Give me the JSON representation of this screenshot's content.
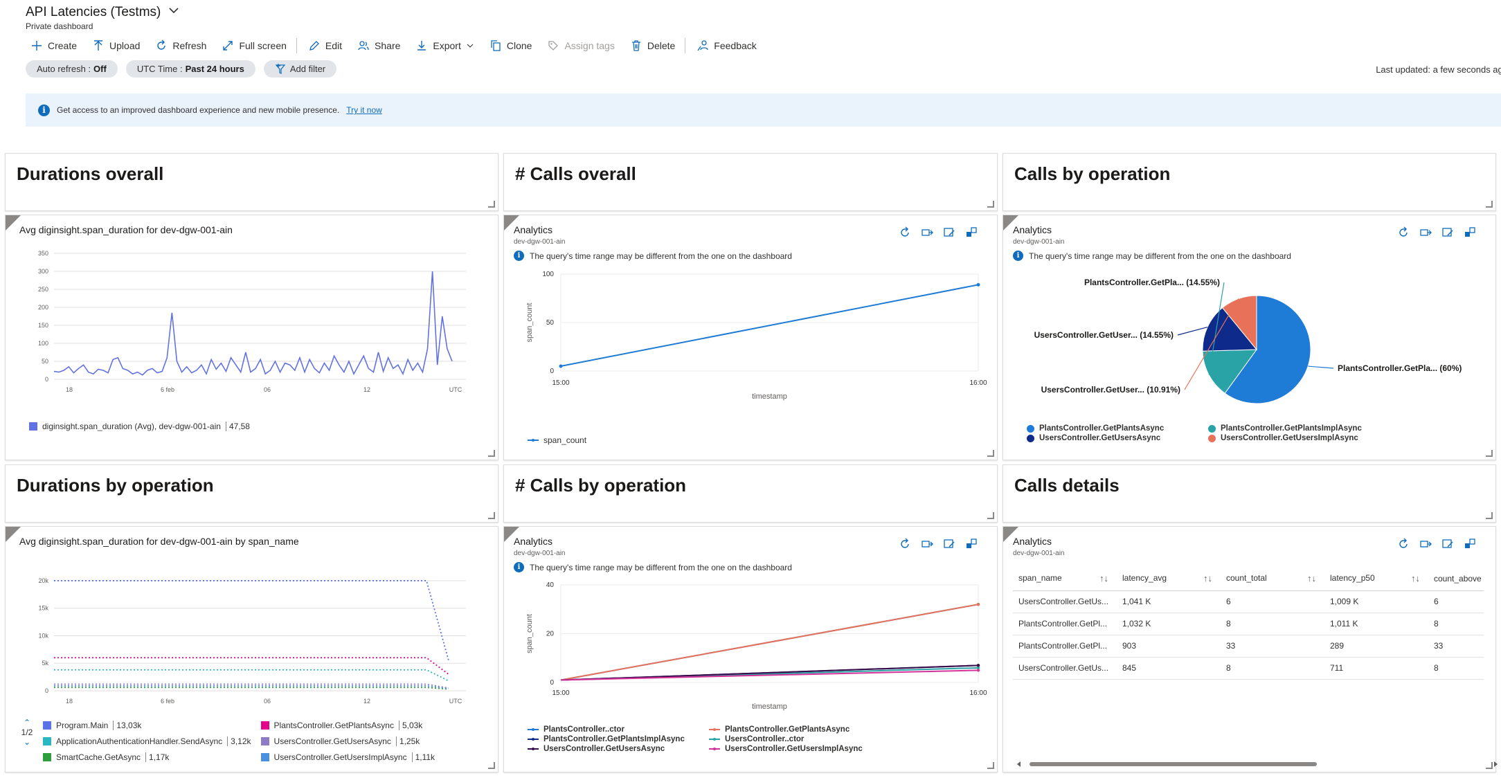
{
  "header": {
    "title": "API Latencies (Testms)",
    "subtitle": "Private dashboard"
  },
  "toolbar": {
    "create": "Create",
    "upload": "Upload",
    "refresh": "Refresh",
    "fullscreen": "Full screen",
    "edit": "Edit",
    "share": "Share",
    "export": "Export",
    "clone": "Clone",
    "assign_tags": "Assign tags",
    "delete": "Delete",
    "feedback": "Feedback"
  },
  "filters": {
    "auto_refresh_label": "Auto refresh :",
    "auto_refresh_value": "Off",
    "time_label": "UTC Time :",
    "time_value": "Past 24 hours",
    "add_filter": "Add filter"
  },
  "last_updated": "Last updated: a few seconds ago",
  "banner": {
    "text": "Get access to an improved dashboard experience and new mobile presence.",
    "link": "Try it now"
  },
  "tiles": {
    "durations_overall": "Durations overall",
    "calls_overall": "# Calls overall",
    "calls_by_operation": "Calls by operation",
    "durations_by_operation": "Durations by operation",
    "calls_by_operation_count": "# Calls by operation",
    "calls_details": "Calls details"
  },
  "analytics": {
    "title": "Analytics",
    "resource": "dev-dgw-001-ain",
    "note": "The query's time range may be different from the one on the dashboard"
  },
  "durations_overall_chart": {
    "heading": "Avg diginsight.span_duration for dev-dgw-001-ain",
    "legend_label": "diginsight.span_duration (Avg), dev-dgw-001-ain",
    "legend_value": "47,58",
    "color": "#6272e0"
  },
  "durations_by_op_chart": {
    "heading": "Avg diginsight.span_duration for dev-dgw-001-ain by span_name",
    "page": "1/2",
    "legend": [
      {
        "name": "Program.Main",
        "value": "13,03k",
        "color": "#5b73e8"
      },
      {
        "name": "PlantsController.GetPlantsAsync",
        "value": "5,03k",
        "color": "#e3008c"
      },
      {
        "name": "ApplicationAuthenticationHandler.SendAsync",
        "value": "3,12k",
        "color": "#2bb7c2"
      },
      {
        "name": "UsersController.GetUsersAsync",
        "value": "1,25k",
        "color": "#8f7cc9"
      },
      {
        "name": "SmartCache.GetAsync",
        "value": "1,17k",
        "color": "#2e9e3e"
      },
      {
        "name": "UsersController.GetUsersImplAsync",
        "value": "1,11k",
        "color": "#4a90e2"
      }
    ]
  },
  "calls_overall_legend": "span_count",
  "pie_legend": [
    {
      "name": "PlantsController.GetPlantsAsync",
      "color": "#1e7bd6"
    },
    {
      "name": "PlantsController.GetPlantsImplAsync",
      "color": "#2aa3a6"
    },
    {
      "name": "UsersController.GetUsersAsync",
      "color": "#0e2a8a"
    },
    {
      "name": "UsersController.GetUsersImplAsync",
      "color": "#e8715a"
    }
  ],
  "calls_by_op_legend": [
    {
      "name": "PlantsController..ctor",
      "color": "#1e7bd6"
    },
    {
      "name": "PlantsController.GetPlantsAsync",
      "color": "#e8715a"
    },
    {
      "name": "PlantsController.GetPlantsImplAsync",
      "color": "#0e2a8a"
    },
    {
      "name": "UsersController..ctor",
      "color": "#2aa3a6"
    },
    {
      "name": "UsersController.GetUsersAsync",
      "color": "#3a0d4a"
    },
    {
      "name": "UsersController.GetUsersImplAsync",
      "color": "#d6339a"
    }
  ],
  "calls_details_table": {
    "columns": [
      "span_name",
      "latency_avg",
      "count_total",
      "latency_p50",
      "count_above"
    ],
    "rows": [
      [
        "UsersController.GetUs...",
        "1,041 K",
        "6",
        "1,009 K",
        "6"
      ],
      [
        "PlantsController.GetPl...",
        "1,032 K",
        "8",
        "1,011 K",
        "8"
      ],
      [
        "PlantsController.GetPl...",
        "903",
        "33",
        "289",
        "33"
      ],
      [
        "UsersController.GetUs...",
        "845",
        "8",
        "711",
        "8"
      ]
    ]
  },
  "chart_data": [
    {
      "type": "line",
      "title": "Avg diginsight.span_duration for dev-dgw-001-ain",
      "xlabel": "",
      "ylabel": "",
      "x_ticks": [
        "18",
        "6 feb",
        "06",
        "12",
        "UTC"
      ],
      "y_ticks": [
        0,
        50,
        100,
        150,
        200,
        250,
        300,
        350
      ],
      "ylim": [
        0,
        350
      ],
      "series": [
        {
          "name": "diginsight.span_duration (Avg), dev-dgw-001-ain",
          "color": "#6272e0",
          "values": [
            22,
            20,
            25,
            35,
            18,
            30,
            40,
            20,
            15,
            28,
            25,
            18,
            55,
            60,
            30,
            25,
            15,
            20,
            12,
            25,
            30,
            18,
            22,
            60,
            185,
            50,
            20,
            35,
            18,
            25,
            40,
            15,
            55,
            28,
            45,
            22,
            60,
            40,
            20,
            75,
            20,
            30,
            55,
            15,
            25,
            50,
            20,
            45,
            40,
            25,
            60,
            20,
            55,
            30,
            18,
            45,
            25,
            65,
            40,
            20,
            50,
            15,
            40,
            65,
            30,
            20,
            75,
            22,
            60,
            30,
            40,
            15,
            55,
            25,
            45,
            20,
            85,
            300,
            40,
            175,
            85,
            50
          ]
        }
      ]
    },
    {
      "type": "line",
      "title": "",
      "xlabel": "timestamp",
      "ylabel": "span_count",
      "x_ticks": [
        "15:00",
        "16:00"
      ],
      "y_ticks": [
        0,
        50,
        100
      ],
      "ylim": [
        0,
        100
      ],
      "series": [
        {
          "name": "span_count",
          "color": "#1e7bd6",
          "values": [
            5,
            89
          ]
        }
      ]
    },
    {
      "type": "pie",
      "title": "",
      "categories": [
        "PlantsController.GetPlantsAsync",
        "PlantsController.GetPlantsImplAsync",
        "UsersController.GetUsersAsync",
        "UsersController.GetUsersImplAsync"
      ],
      "values": [
        60,
        14.55,
        14.55,
        10.91
      ],
      "labels": [
        "PlantsController.GetPla... (60%)",
        "PlantsController.GetPla... (14.55%)",
        "UsersController.GetUser... (14.55%)",
        "UsersController.GetUser... (10.91%)"
      ],
      "colors": [
        "#1e7bd6",
        "#2aa3a6",
        "#0e2a8a",
        "#e8715a"
      ]
    },
    {
      "type": "line",
      "title": "Avg diginsight.span_duration for dev-dgw-001-ain by span_name",
      "xlabel": "",
      "ylabel": "",
      "x_ticks": [
        "18",
        "6 feb",
        "06",
        "12",
        "UTC"
      ],
      "y_ticks": [
        "0",
        "5k",
        "10k",
        "15k",
        "20k"
      ],
      "ylim": [
        0,
        21000
      ],
      "series": [
        {
          "name": "Program.Main",
          "color": "#5b73e8",
          "values": [
            20000,
            20000,
            20000,
            5500
          ]
        },
        {
          "name": "PlantsController.GetPlantsAsync",
          "color": "#e3008c",
          "values": [
            6000,
            6000,
            6000,
            3000
          ]
        },
        {
          "name": "ApplicationAuthenticationHandler.SendAsync",
          "color": "#2bb7c2",
          "values": [
            3800,
            3800,
            3800,
            1800
          ]
        },
        {
          "name": "UsersController.GetUsersAsync",
          "color": "#8f7cc9",
          "values": [
            1200,
            1200,
            1200,
            500
          ]
        },
        {
          "name": "SmartCache.GetAsync",
          "color": "#2e9e3e",
          "values": [
            600,
            600,
            600,
            300
          ]
        },
        {
          "name": "UsersController.GetUsersImplAsync",
          "color": "#4a90e2",
          "values": [
            900,
            900,
            900,
            400
          ]
        }
      ]
    },
    {
      "type": "line",
      "title": "",
      "xlabel": "timestamp",
      "ylabel": "span_count",
      "x_ticks": [
        "15:00",
        "16:00"
      ],
      "y_ticks": [
        0,
        20,
        40
      ],
      "ylim": [
        0,
        40
      ],
      "series": [
        {
          "name": "PlantsController..ctor",
          "color": "#1e7bd6",
          "values": [
            1,
            32
          ]
        },
        {
          "name": "PlantsController.GetPlantsAsync",
          "color": "#e8715a",
          "values": [
            1,
            32
          ]
        },
        {
          "name": "PlantsController.GetPlantsImplAsync",
          "color": "#0e2a8a",
          "values": [
            1,
            7
          ]
        },
        {
          "name": "UsersController..ctor",
          "color": "#2aa3a6",
          "values": [
            1,
            6
          ]
        },
        {
          "name": "UsersController.GetUsersAsync",
          "color": "#3a0d4a",
          "values": [
            1,
            7
          ]
        },
        {
          "name": "UsersController.GetUsersImplAsync",
          "color": "#d6339a",
          "values": [
            1,
            5
          ]
        }
      ]
    }
  ]
}
